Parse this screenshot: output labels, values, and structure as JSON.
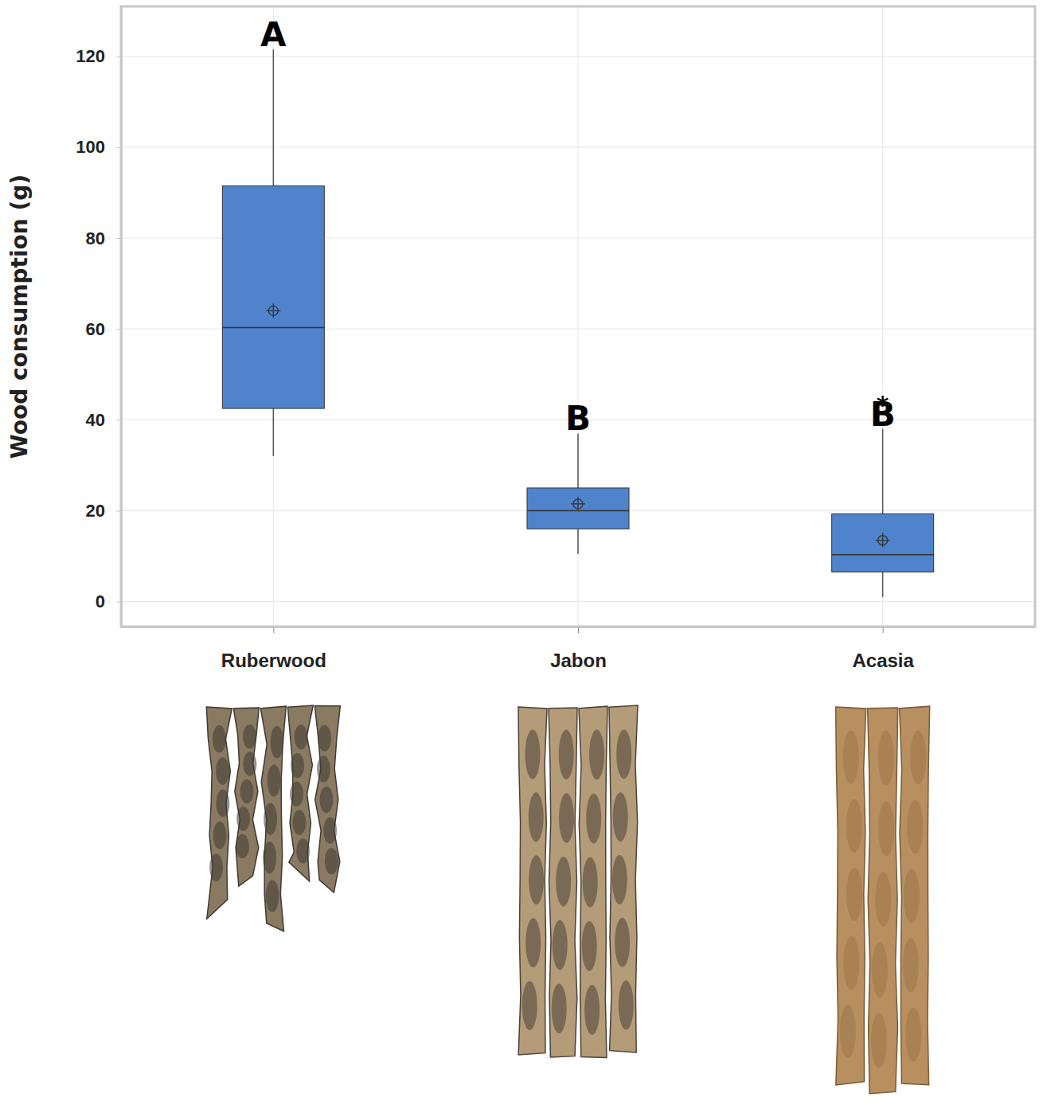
{
  "chart_data": {
    "type": "box",
    "y_label": "Wood consumption (g)",
    "categories": [
      "Ruberwood",
      "Jabon",
      "Acasia"
    ],
    "stats": {
      "min": [
        32,
        10.5,
        1
      ],
      "q1": [
        42.5,
        16,
        6.5
      ],
      "median": [
        60.3,
        20,
        10.3
      ],
      "q3": [
        91.5,
        25,
        19.3
      ],
      "max": [
        121.5,
        37,
        38
      ],
      "mean": [
        64,
        21.5,
        13.5
      ]
    },
    "color": "#4f83cc",
    "marker": "circle-plus",
    "ylim": [
      -5.5,
      131
    ],
    "yticks": [
      0,
      20,
      40,
      60,
      80,
      100,
      120
    ],
    "grid": true,
    "annotations": [
      {
        "x": "Ruberwood",
        "text": "A"
      },
      {
        "x": "Jabon",
        "text": "B"
      },
      {
        "x": "Acasia",
        "text": "B"
      },
      {
        "x": "Acasia",
        "text": "*"
      }
    ]
  }
}
